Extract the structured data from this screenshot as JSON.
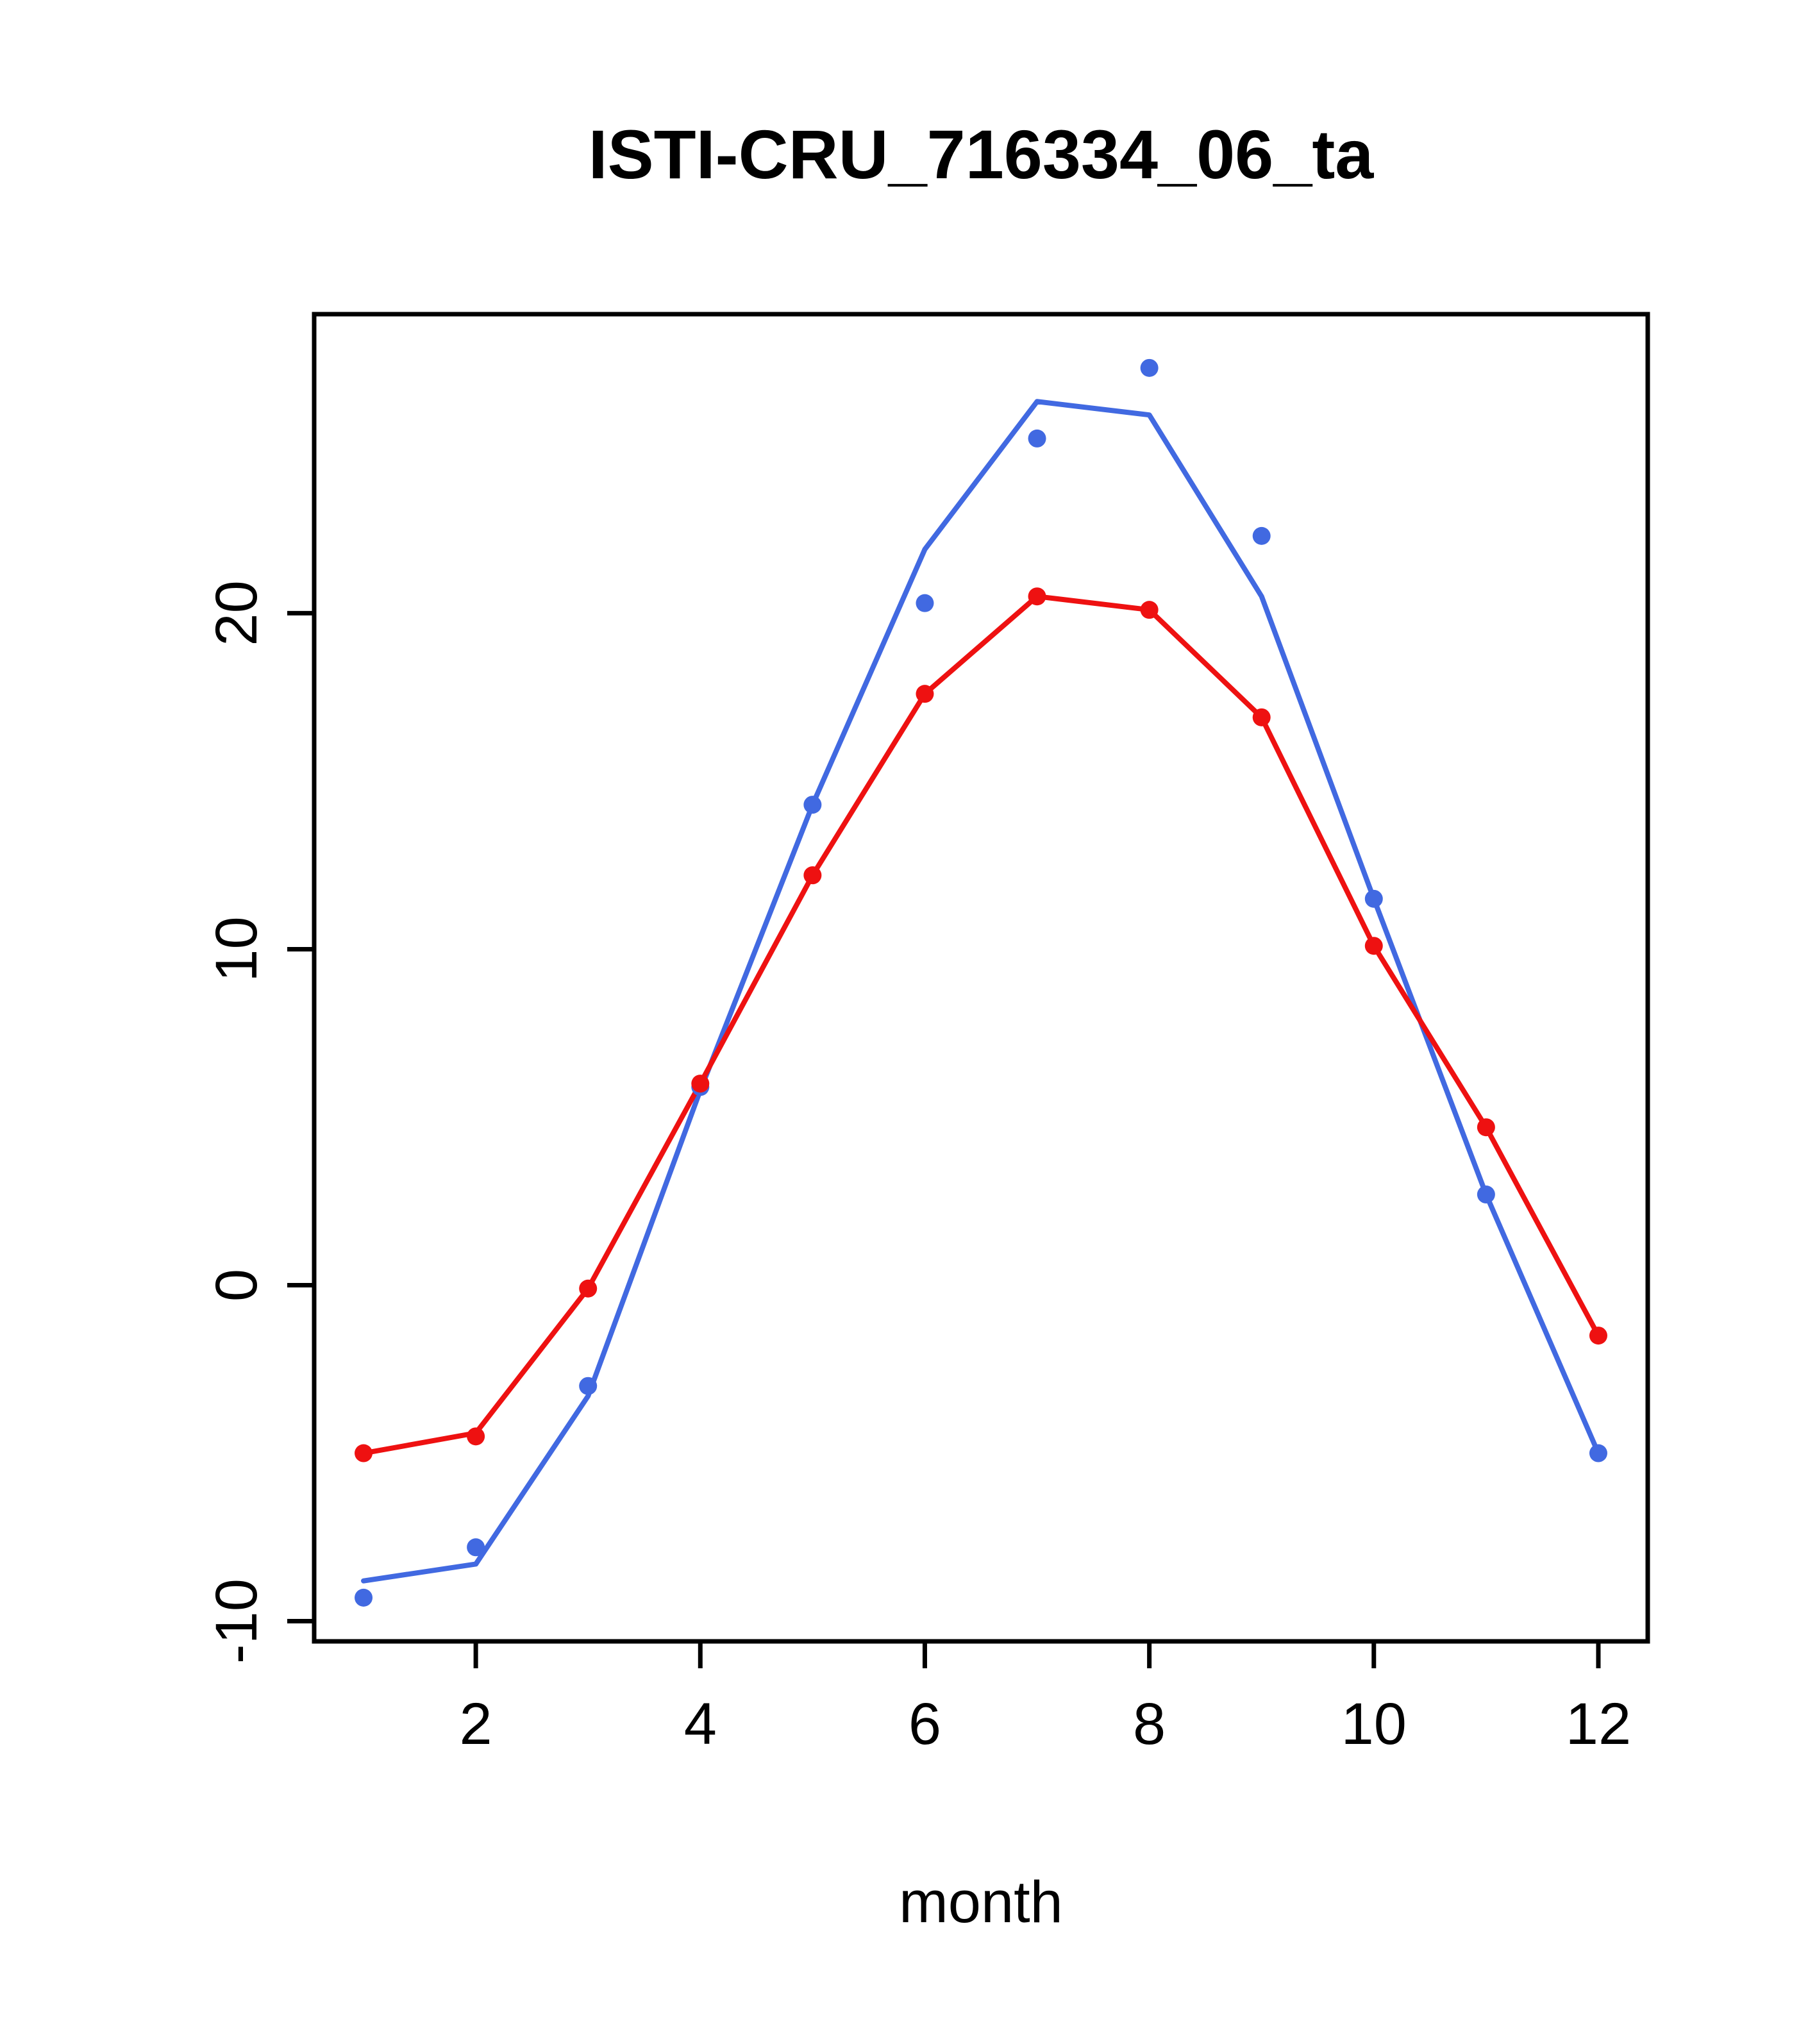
{
  "chart_data": {
    "type": "line",
    "title": "ISTI-CRU_716334_06_ta",
    "xlabel": "month",
    "ylabel": "",
    "x": [
      1,
      2,
      3,
      4,
      5,
      6,
      7,
      8,
      9,
      10,
      11,
      12
    ],
    "xlim": [
      0.56,
      12.44
    ],
    "ylim": [
      -10.6,
      28.9
    ],
    "x_ticks": [
      2,
      4,
      6,
      8,
      10,
      12
    ],
    "y_ticks": [
      -10,
      0,
      10,
      20
    ],
    "grid": false,
    "legend_position": "none",
    "accent_colors": {
      "blue": "#4169e1",
      "red": "#ee1111"
    },
    "series": [
      {
        "name": "blue-line",
        "type": "line",
        "color": "#4169e1",
        "values": [
          -8.8,
          -8.3,
          -3.3,
          5.8,
          14.3,
          21.9,
          26.3,
          25.9,
          20.5,
          11.5,
          2.7,
          -5.0
        ]
      },
      {
        "name": "red-line",
        "type": "line",
        "color": "#ee1111",
        "values": [
          -5.0,
          -4.4,
          -0.1,
          6.0,
          12.2,
          17.6,
          20.5,
          20.1,
          16.9,
          10.1,
          4.7,
          -1.5
        ]
      },
      {
        "name": "blue-points",
        "type": "points",
        "color": "#4169e1",
        "values": [
          -9.3,
          -7.8,
          -3.0,
          5.9,
          14.3,
          20.3,
          25.2,
          27.3,
          22.3,
          11.5,
          2.7,
          -5.0
        ]
      },
      {
        "name": "red-points",
        "type": "points",
        "color": "#ee1111",
        "values": [
          -5.0,
          -4.5,
          -0.1,
          6.0,
          12.2,
          17.6,
          20.5,
          20.1,
          16.9,
          10.1,
          4.7,
          -1.5
        ]
      }
    ]
  }
}
